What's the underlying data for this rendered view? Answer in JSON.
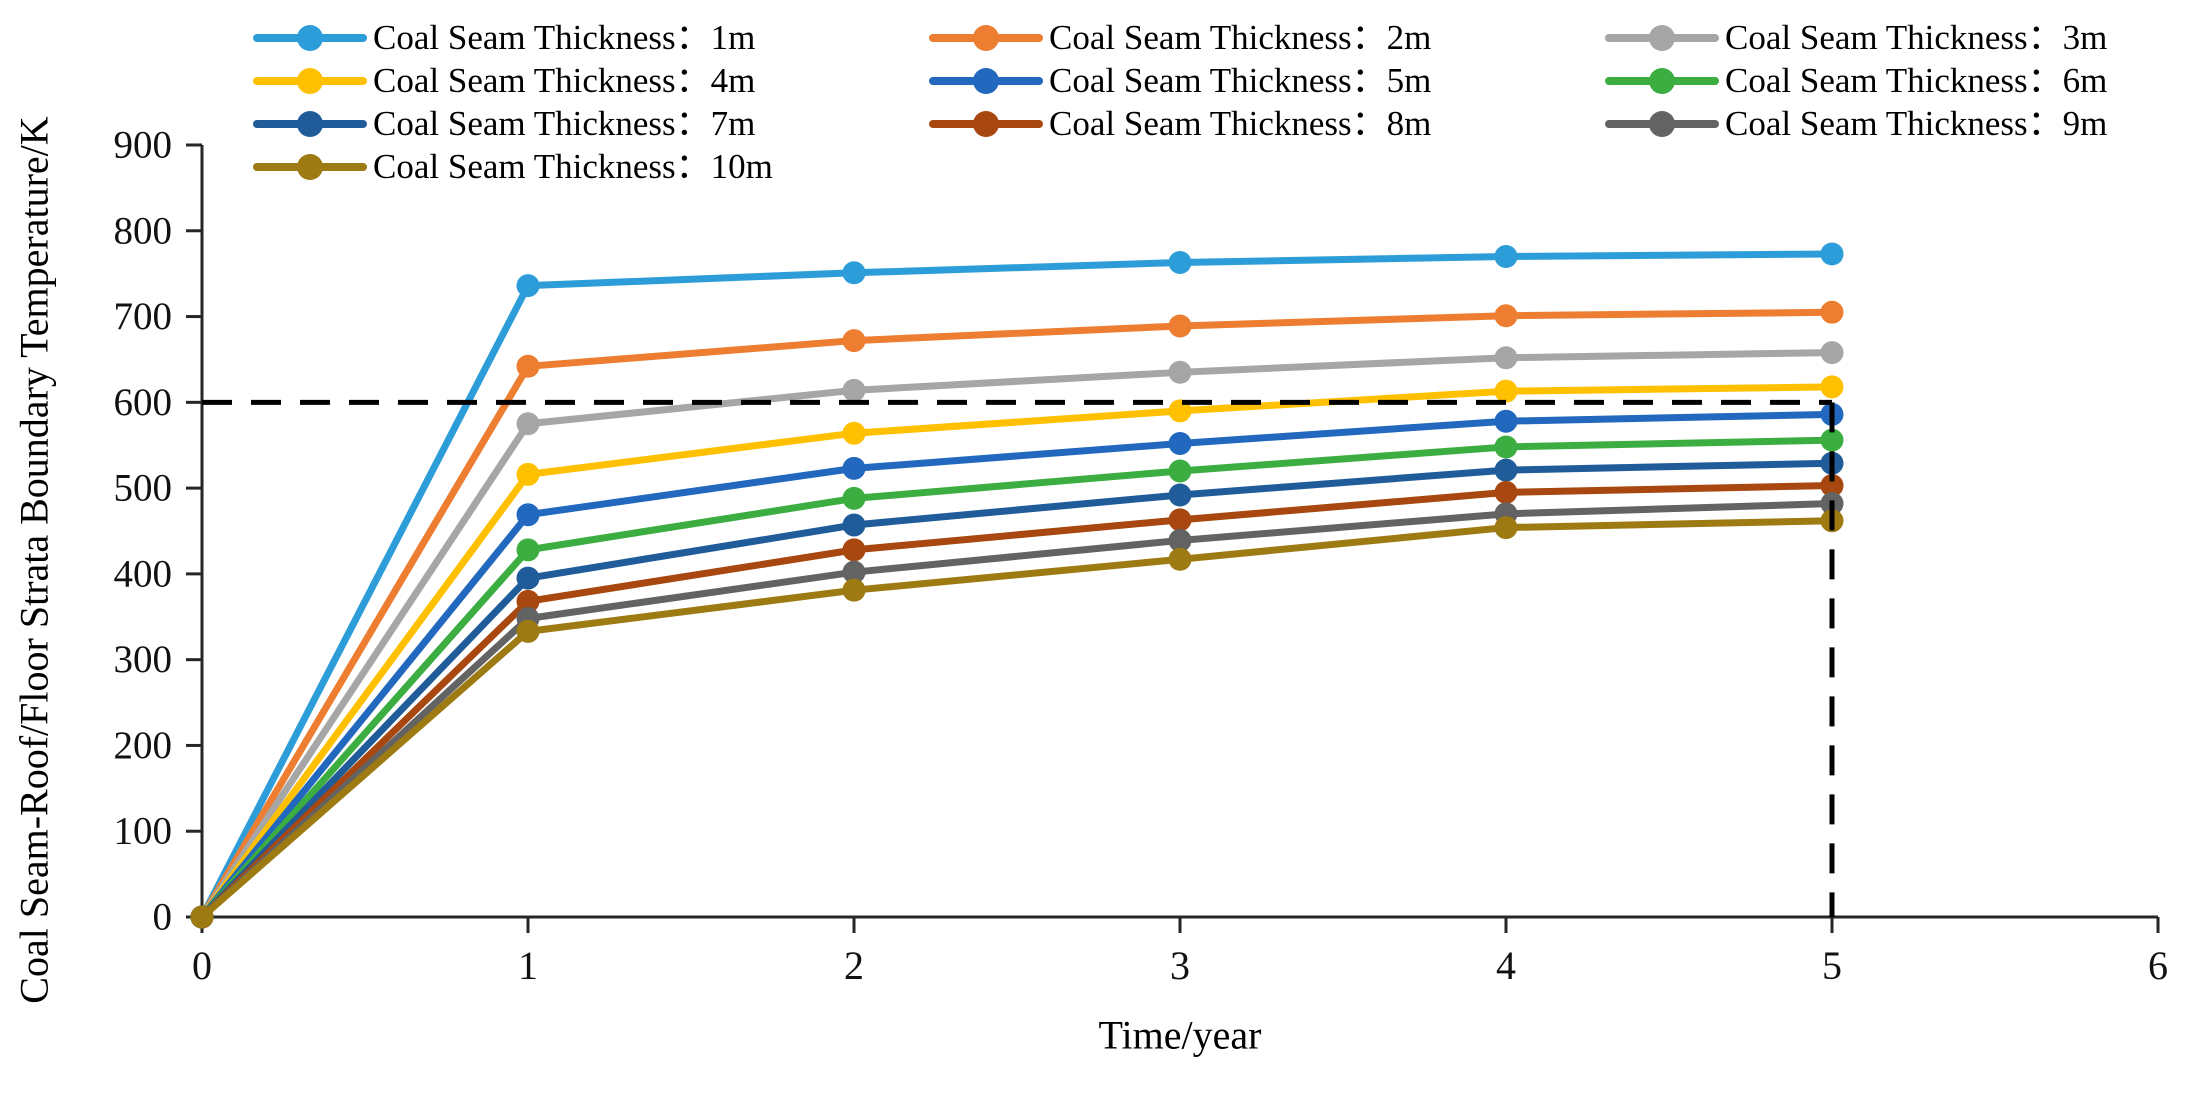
{
  "chart_data": {
    "type": "line",
    "title": "",
    "xlabel": "Time/year",
    "ylabel": "Coal Seam-Roof/Floor Strata Boundary Temperature/K",
    "xlim": [
      0,
      6
    ],
    "ylim": [
      0,
      900
    ],
    "xticks": [
      0,
      1,
      2,
      3,
      4,
      5,
      6
    ],
    "yticks": [
      0,
      100,
      200,
      300,
      400,
      500,
      600,
      700,
      800,
      900
    ],
    "grid": false,
    "legend_position": "top",
    "x": [
      0,
      1,
      2,
      3,
      4,
      5
    ],
    "series": [
      {
        "name": "Coal Seam Thickness：1m",
        "color": "#2D9DD9",
        "values": [
          0,
          736,
          751,
          763,
          770,
          773
        ]
      },
      {
        "name": "Coal Seam Thickness：2m",
        "color": "#ED7D31",
        "values": [
          0,
          642,
          672,
          689,
          701,
          705
        ]
      },
      {
        "name": "Coal Seam Thickness：3m",
        "color": "#A6A6A6",
        "values": [
          0,
          575,
          614,
          635,
          652,
          658
        ]
      },
      {
        "name": "Coal Seam Thickness：4m",
        "color": "#FFC000",
        "values": [
          0,
          516,
          564,
          590,
          613,
          618
        ]
      },
      {
        "name": "Coal Seam Thickness：5m",
        "color": "#2268BE",
        "values": [
          0,
          469,
          523,
          552,
          578,
          586
        ]
      },
      {
        "name": "Coal Seam Thickness：6m",
        "color": "#3CAE41",
        "values": [
          0,
          428,
          488,
          520,
          548,
          556
        ]
      },
      {
        "name": "Coal Seam Thickness：7m",
        "color": "#1F5C99",
        "values": [
          0,
          395,
          457,
          492,
          521,
          529
        ]
      },
      {
        "name": "Coal Seam Thickness：8m",
        "color": "#A8470F",
        "values": [
          0,
          368,
          428,
          463,
          495,
          503
        ]
      },
      {
        "name": "Coal Seam Thickness：9m",
        "color": "#636363",
        "values": [
          0,
          348,
          402,
          439,
          470,
          482
        ]
      },
      {
        "name": "Coal Seam Thickness：10m",
        "color": "#9E7A12",
        "values": [
          0,
          333,
          381,
          417,
          454,
          462
        ]
      }
    ],
    "reference_lines": [
      {
        "type": "horizontal",
        "y": 600,
        "x_start": 0,
        "x_end": 5,
        "style": "dashed",
        "color": "#000000"
      },
      {
        "type": "vertical",
        "x": 5,
        "y_start": 0,
        "y_end": 600,
        "style": "dashed",
        "color": "#000000"
      }
    ],
    "axis_color": "#262626"
  }
}
